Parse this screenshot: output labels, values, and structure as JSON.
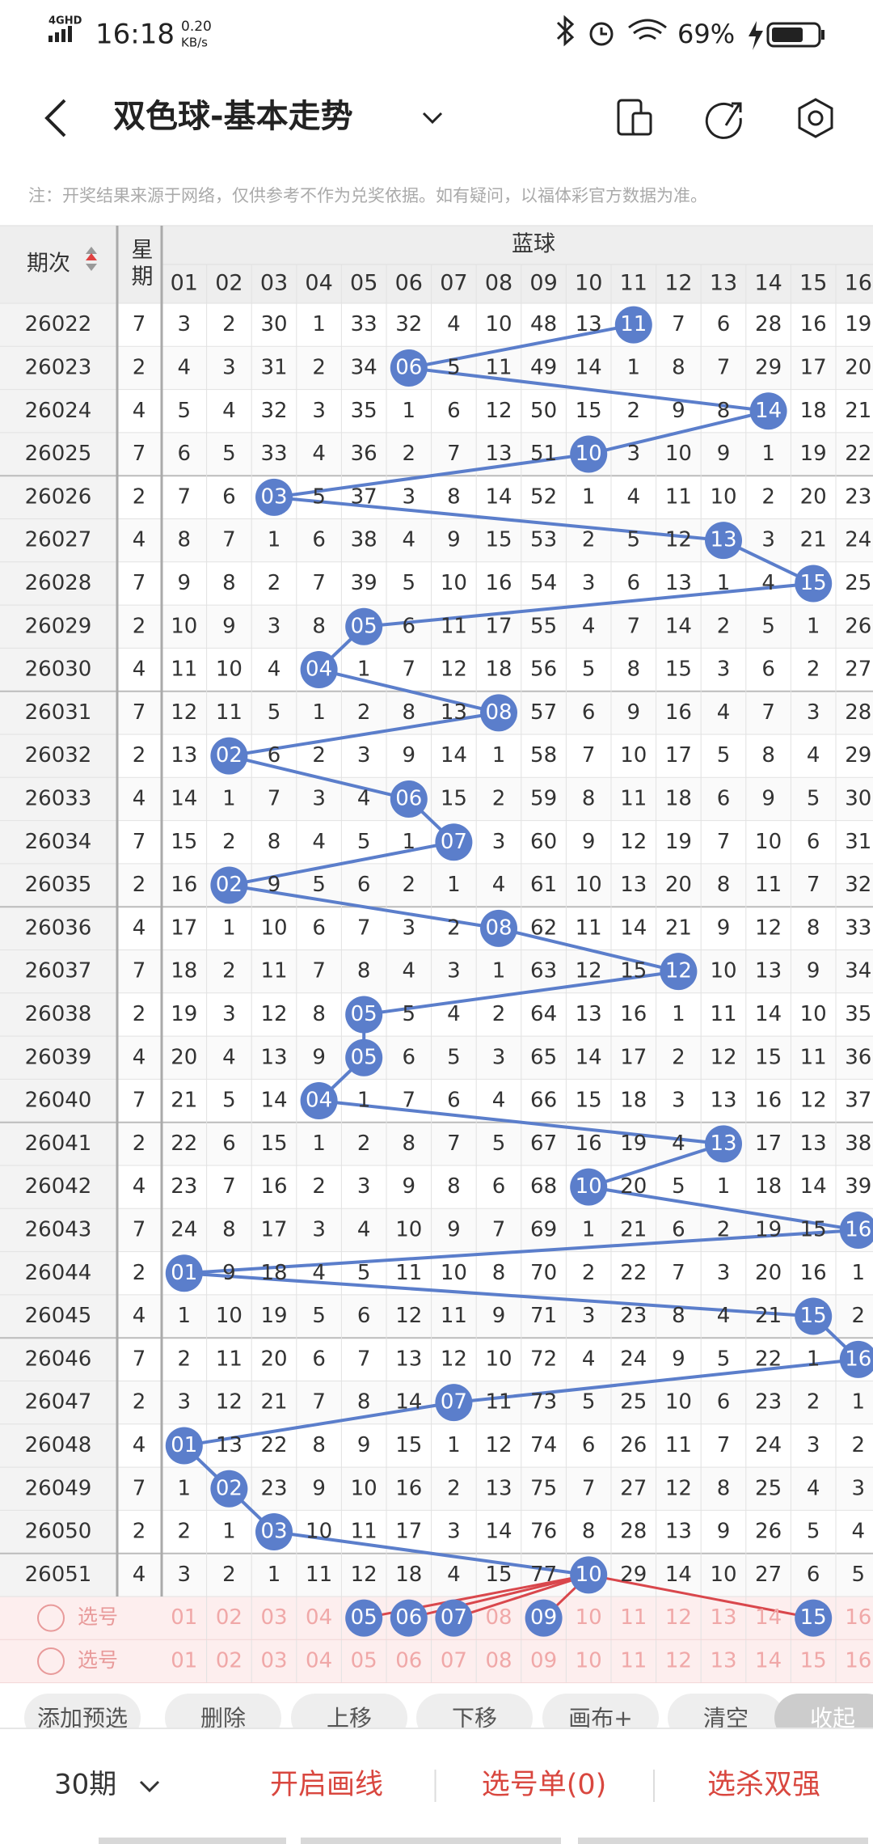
{
  "status_bar": {
    "network": "4GHD",
    "time": "16:18",
    "speed": "0.20",
    "speed_unit": "KB/s",
    "battery": "69%"
  },
  "header": {
    "title": "双色球-基本走势"
  },
  "note": "注：开奖结果来源于网络，仅供参考不作为兑奖依据。如有疑问，以福体彩官方数据为准。",
  "table": {
    "issue_header": "期次",
    "week_header": "星期",
    "group_header": "蓝球",
    "columns": [
      "01",
      "02",
      "03",
      "04",
      "05",
      "06",
      "07",
      "08",
      "09",
      "10",
      "11",
      "12",
      "13",
      "14",
      "15",
      "16"
    ],
    "rows": [
      {
        "issue": "26022",
        "week": "7",
        "cells": [
          "3",
          "2",
          "30",
          "1",
          "33",
          "32",
          "4",
          "10",
          "48",
          "13",
          "11",
          "7",
          "6",
          "28",
          "16",
          "19"
        ],
        "ball": 10
      },
      {
        "issue": "26023",
        "week": "2",
        "cells": [
          "4",
          "3",
          "31",
          "2",
          "34",
          "06",
          "5",
          "11",
          "49",
          "14",
          "1",
          "8",
          "7",
          "29",
          "17",
          "20"
        ],
        "ball": 5
      },
      {
        "issue": "26024",
        "week": "4",
        "cells": [
          "5",
          "4",
          "32",
          "3",
          "35",
          "1",
          "6",
          "12",
          "50",
          "15",
          "2",
          "9",
          "8",
          "14",
          "18",
          "21"
        ],
        "ball": 13
      },
      {
        "issue": "26025",
        "week": "7",
        "cells": [
          "6",
          "5",
          "33",
          "4",
          "36",
          "2",
          "7",
          "13",
          "51",
          "10",
          "3",
          "10",
          "9",
          "1",
          "19",
          "22"
        ],
        "ball": 9
      },
      {
        "issue": "26026",
        "week": "2",
        "cells": [
          "7",
          "6",
          "03",
          "5",
          "37",
          "3",
          "8",
          "14",
          "52",
          "1",
          "4",
          "11",
          "10",
          "2",
          "20",
          "23"
        ],
        "ball": 2
      },
      {
        "issue": "26027",
        "week": "4",
        "cells": [
          "8",
          "7",
          "1",
          "6",
          "38",
          "4",
          "9",
          "15",
          "53",
          "2",
          "5",
          "12",
          "13",
          "3",
          "21",
          "24"
        ],
        "ball": 12
      },
      {
        "issue": "26028",
        "week": "7",
        "cells": [
          "9",
          "8",
          "2",
          "7",
          "39",
          "5",
          "10",
          "16",
          "54",
          "3",
          "6",
          "13",
          "1",
          "4",
          "15",
          "25"
        ],
        "ball": 14
      },
      {
        "issue": "26029",
        "week": "2",
        "cells": [
          "10",
          "9",
          "3",
          "8",
          "05",
          "6",
          "11",
          "17",
          "55",
          "4",
          "7",
          "14",
          "2",
          "5",
          "1",
          "26"
        ],
        "ball": 4
      },
      {
        "issue": "26030",
        "week": "4",
        "cells": [
          "11",
          "10",
          "4",
          "04",
          "1",
          "7",
          "12",
          "18",
          "56",
          "5",
          "8",
          "15",
          "3",
          "6",
          "2",
          "27"
        ],
        "ball": 3
      },
      {
        "issue": "26031",
        "week": "7",
        "cells": [
          "12",
          "11",
          "5",
          "1",
          "2",
          "8",
          "13",
          "08",
          "57",
          "6",
          "9",
          "16",
          "4",
          "7",
          "3",
          "28"
        ],
        "ball": 7
      },
      {
        "issue": "26032",
        "week": "2",
        "cells": [
          "13",
          "02",
          "6",
          "2",
          "3",
          "9",
          "14",
          "1",
          "58",
          "7",
          "10",
          "17",
          "5",
          "8",
          "4",
          "29"
        ],
        "ball": 1
      },
      {
        "issue": "26033",
        "week": "4",
        "cells": [
          "14",
          "1",
          "7",
          "3",
          "4",
          "06",
          "15",
          "2",
          "59",
          "8",
          "11",
          "18",
          "6",
          "9",
          "5",
          "30"
        ],
        "ball": 5
      },
      {
        "issue": "26034",
        "week": "7",
        "cells": [
          "15",
          "2",
          "8",
          "4",
          "5",
          "1",
          "07",
          "3",
          "60",
          "9",
          "12",
          "19",
          "7",
          "10",
          "6",
          "31"
        ],
        "ball": 6
      },
      {
        "issue": "26035",
        "week": "2",
        "cells": [
          "16",
          "02",
          "9",
          "5",
          "6",
          "2",
          "1",
          "4",
          "61",
          "10",
          "13",
          "20",
          "8",
          "11",
          "7",
          "32"
        ],
        "ball": 1
      },
      {
        "issue": "26036",
        "week": "4",
        "cells": [
          "17",
          "1",
          "10",
          "6",
          "7",
          "3",
          "2",
          "08",
          "62",
          "11",
          "14",
          "21",
          "9",
          "12",
          "8",
          "33"
        ],
        "ball": 7
      },
      {
        "issue": "26037",
        "week": "7",
        "cells": [
          "18",
          "2",
          "11",
          "7",
          "8",
          "4",
          "3",
          "1",
          "63",
          "12",
          "15",
          "12",
          "10",
          "13",
          "9",
          "34"
        ],
        "ball": 11
      },
      {
        "issue": "26038",
        "week": "2",
        "cells": [
          "19",
          "3",
          "12",
          "8",
          "05",
          "5",
          "4",
          "2",
          "64",
          "13",
          "16",
          "1",
          "11",
          "14",
          "10",
          "35"
        ],
        "ball": 4
      },
      {
        "issue": "26039",
        "week": "4",
        "cells": [
          "20",
          "4",
          "13",
          "9",
          "05",
          "6",
          "5",
          "3",
          "65",
          "14",
          "17",
          "2",
          "12",
          "15",
          "11",
          "36"
        ],
        "ball": 4
      },
      {
        "issue": "26040",
        "week": "7",
        "cells": [
          "21",
          "5",
          "14",
          "04",
          "1",
          "7",
          "6",
          "4",
          "66",
          "15",
          "18",
          "3",
          "13",
          "16",
          "12",
          "37"
        ],
        "ball": 3
      },
      {
        "issue": "26041",
        "week": "2",
        "cells": [
          "22",
          "6",
          "15",
          "1",
          "2",
          "8",
          "7",
          "5",
          "67",
          "16",
          "19",
          "4",
          "13",
          "17",
          "13",
          "38"
        ],
        "ball": 12
      },
      {
        "issue": "26042",
        "week": "4",
        "cells": [
          "23",
          "7",
          "16",
          "2",
          "3",
          "9",
          "8",
          "6",
          "68",
          "10",
          "20",
          "5",
          "1",
          "18",
          "14",
          "39"
        ],
        "ball": 9
      },
      {
        "issue": "26043",
        "week": "7",
        "cells": [
          "24",
          "8",
          "17",
          "3",
          "4",
          "10",
          "9",
          "7",
          "69",
          "1",
          "21",
          "6",
          "2",
          "19",
          "15",
          "16"
        ],
        "ball": 15
      },
      {
        "issue": "26044",
        "week": "2",
        "cells": [
          "01",
          "9",
          "18",
          "4",
          "5",
          "11",
          "10",
          "8",
          "70",
          "2",
          "22",
          "7",
          "3",
          "20",
          "16",
          "1"
        ],
        "ball": 0
      },
      {
        "issue": "26045",
        "week": "4",
        "cells": [
          "1",
          "10",
          "19",
          "5",
          "6",
          "12",
          "11",
          "9",
          "71",
          "3",
          "23",
          "8",
          "4",
          "21",
          "15",
          "2"
        ],
        "ball": 14
      },
      {
        "issue": "26046",
        "week": "7",
        "cells": [
          "2",
          "11",
          "20",
          "6",
          "7",
          "13",
          "12",
          "10",
          "72",
          "4",
          "24",
          "9",
          "5",
          "22",
          "1",
          "16"
        ],
        "ball": 15
      },
      {
        "issue": "26047",
        "week": "2",
        "cells": [
          "3",
          "12",
          "21",
          "7",
          "8",
          "14",
          "07",
          "11",
          "73",
          "5",
          "25",
          "10",
          "6",
          "23",
          "2",
          "1"
        ],
        "ball": 6
      },
      {
        "issue": "26048",
        "week": "4",
        "cells": [
          "01",
          "13",
          "22",
          "8",
          "9",
          "15",
          "1",
          "12",
          "74",
          "6",
          "26",
          "11",
          "7",
          "24",
          "3",
          "2"
        ],
        "ball": 0
      },
      {
        "issue": "26049",
        "week": "7",
        "cells": [
          "1",
          "02",
          "23",
          "9",
          "10",
          "16",
          "2",
          "13",
          "75",
          "7",
          "27",
          "12",
          "8",
          "25",
          "4",
          "3"
        ],
        "ball": 1
      },
      {
        "issue": "26050",
        "week": "2",
        "cells": [
          "2",
          "1",
          "03",
          "10",
          "11",
          "17",
          "3",
          "14",
          "76",
          "8",
          "28",
          "13",
          "9",
          "26",
          "5",
          "4"
        ],
        "ball": 2
      },
      {
        "issue": "26051",
        "week": "4",
        "cells": [
          "3",
          "2",
          "1",
          "11",
          "12",
          "18",
          "4",
          "15",
          "77",
          "10",
          "29",
          "14",
          "10",
          "27",
          "6",
          "5"
        ],
        "ball": 9
      }
    ]
  },
  "selection": [
    {
      "label": "选号",
      "numbers": [
        "01",
        "02",
        "03",
        "04",
        "05",
        "06",
        "07",
        "08",
        "09",
        "10",
        "11",
        "12",
        "13",
        "14",
        "15",
        "16"
      ],
      "picked": [
        4,
        5,
        6,
        8,
        14
      ]
    },
    {
      "label": "选号",
      "numbers": [
        "01",
        "02",
        "03",
        "04",
        "05",
        "06",
        "07",
        "08",
        "09",
        "10",
        "11",
        "12",
        "13",
        "14",
        "15",
        "16"
      ],
      "picked": []
    }
  ],
  "toolbar": [
    "添加预选",
    "删除",
    "上移",
    "下移",
    "画布+",
    "清空",
    "收起"
  ],
  "bottom_bar": {
    "period": "30期",
    "items": [
      "开启画线",
      "选号单(0)",
      "选杀双强"
    ]
  }
}
